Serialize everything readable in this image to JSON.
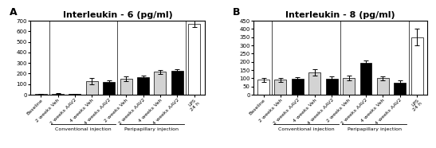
{
  "chart_data": [
    {
      "type": "bar",
      "title": "Interleukin - 6 (pg/ml)",
      "categories": [
        "Baseline",
        "2 weeks Veh",
        "2 weeks AAV2",
        "4 weeks Veh",
        "4 weeks AAV2",
        "2 weeks Veh",
        "2 weeks AAV2",
        "4 weeks Veh",
        "4 weeks AAV2",
        "LPS\n24 h"
      ],
      "values": [
        5,
        10,
        8,
        130,
        120,
        150,
        165,
        215,
        225,
        670
      ],
      "error": [
        2,
        3,
        2,
        30,
        15,
        20,
        15,
        20,
        15,
        30
      ],
      "colors": [
        "white",
        "lightgray",
        "black",
        "lightgray",
        "black",
        "lightgray",
        "black",
        "lightgray",
        "black",
        "white"
      ],
      "ylim": [
        0,
        700
      ],
      "yticks": [
        0,
        100,
        200,
        300,
        400,
        500,
        600,
        700
      ],
      "annotations": [
        "A",
        "Conventional injection",
        "Peripapillary injection"
      ]
    },
    {
      "type": "bar",
      "title": "Interleukin - 8 (pg/ml)",
      "categories": [
        "Baseline",
        "2 weeks Veh",
        "2 weeks AAV2",
        "4 weeks Veh",
        "4 weeks AAV2",
        "2 weeks Veh",
        "2 weeks AAV2",
        "4 weeks Veh",
        "4 weeks AAV2",
        "LPS\n24 h"
      ],
      "values": [
        90,
        90,
        95,
        135,
        95,
        100,
        195,
        100,
        75,
        350
      ],
      "error": [
        10,
        12,
        10,
        20,
        15,
        15,
        15,
        12,
        12,
        50
      ],
      "colors": [
        "white",
        "lightgray",
        "black",
        "lightgray",
        "black",
        "lightgray",
        "black",
        "lightgray",
        "black",
        "white"
      ],
      "ylim": [
        0,
        450
      ],
      "yticks": [
        0,
        50,
        100,
        150,
        200,
        250,
        300,
        350,
        400,
        450
      ],
      "annotations": [
        "B",
        "Conventional injection",
        "Peripapillary injection"
      ]
    }
  ]
}
